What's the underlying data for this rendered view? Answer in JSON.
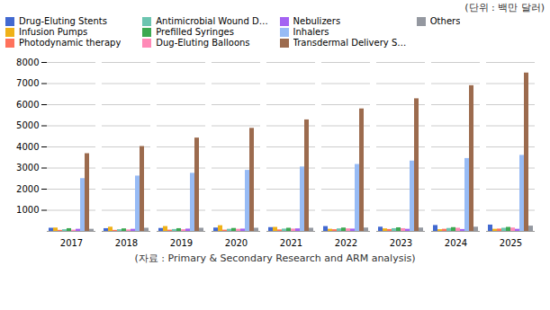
{
  "chart_data": {
    "type": "bar",
    "annotations": [
      "(단위 : 백만 달러)",
      "(자료 : Primary & Secondary Research and ARM analysis)"
    ],
    "categories": [
      "2017",
      "2018",
      "2019",
      "2020",
      "2021",
      "2022",
      "2023",
      "2024",
      "2025"
    ],
    "series": [
      {
        "name": "Drug-Eluting Stents",
        "values": [
          150,
          130,
          140,
          160,
          180,
          230,
          200,
          280,
          300
        ]
      },
      {
        "name": "Infusion Pumps",
        "values": [
          160,
          200,
          230,
          270,
          190,
          100,
          120,
          80,
          100
        ]
      },
      {
        "name": "Photodynamic therapy",
        "values": [
          50,
          50,
          60,
          60,
          70,
          80,
          90,
          100,
          110
        ]
      },
      {
        "name": "Antimicrobial Wound Dressings",
        "values": [
          80,
          80,
          90,
          100,
          110,
          120,
          130,
          140,
          150
        ]
      },
      {
        "name": "Prefilled Syringes",
        "values": [
          130,
          120,
          130,
          140,
          150,
          160,
          170,
          180,
          190
        ]
      },
      {
        "name": "Dug-Eluting Balloons",
        "values": [
          60,
          70,
          80,
          100,
          110,
          120,
          130,
          150,
          160
        ]
      },
      {
        "name": "Nebulizers",
        "values": [
          100,
          100,
          110,
          110,
          120,
          110,
          100,
          90,
          100
        ]
      },
      {
        "name": "Inhalers",
        "values": [
          2500,
          2620,
          2750,
          2890,
          3050,
          3170,
          3330,
          3450,
          3600
        ]
      },
      {
        "name": "Transdermal Delivery Systems",
        "values": [
          3680,
          4020,
          4420,
          4880,
          5280,
          5800,
          6280,
          6900,
          7500
        ]
      },
      {
        "name": "Others",
        "values": [
          100,
          150,
          150,
          150,
          150,
          160,
          160,
          200,
          250
        ]
      }
    ],
    "ylim": [
      0,
      8000
    ],
    "yticks": [
      1000,
      2000,
      3000,
      4000,
      5000,
      6000,
      7000,
      8000
    ],
    "grid": true,
    "legend": "top"
  }
}
